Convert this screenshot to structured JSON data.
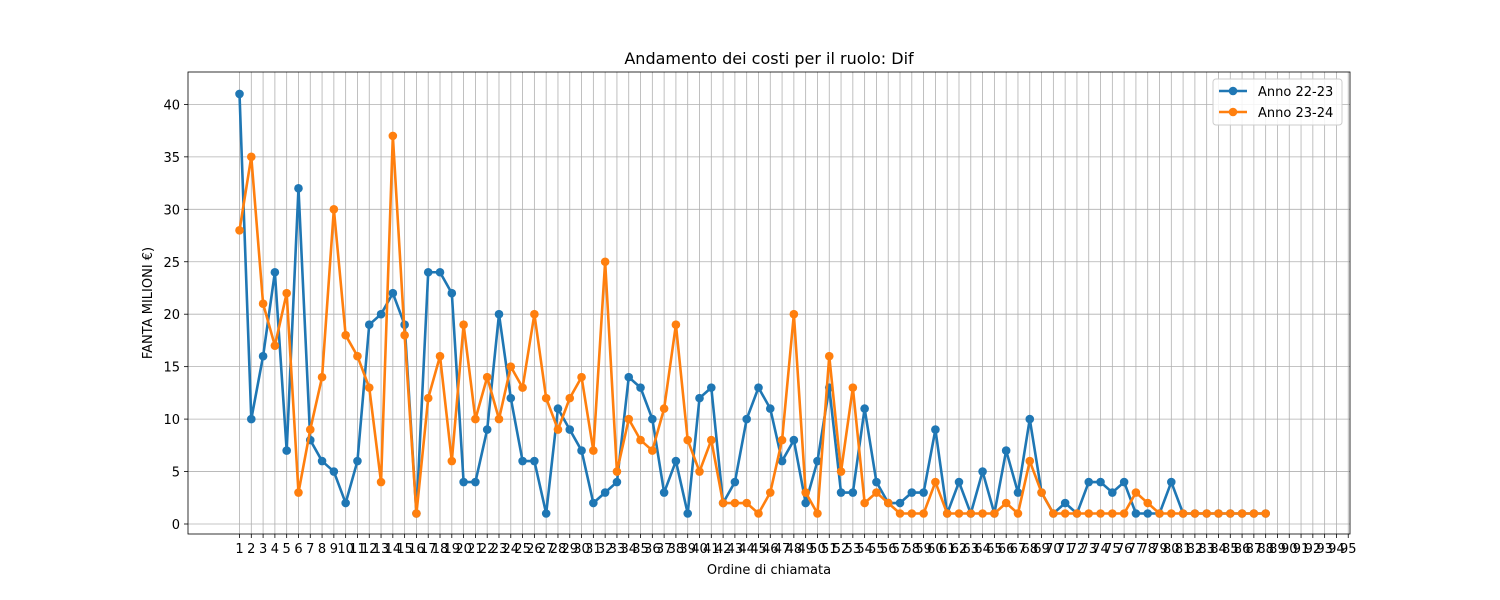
{
  "chart_data": {
    "type": "line",
    "title": "Andamento dei costi per il ruolo: Dif",
    "xlabel": "Ordine di chiamata",
    "ylabel": "FANTA MILIONI €)",
    "xlim": [
      1,
      95
    ],
    "ylim": [
      0,
      42
    ],
    "x_ticks": [
      1,
      2,
      3,
      4,
      5,
      6,
      7,
      8,
      9,
      10,
      11,
      12,
      13,
      14,
      15,
      16,
      17,
      18,
      19,
      20,
      21,
      22,
      23,
      24,
      25,
      26,
      27,
      28,
      29,
      30,
      31,
      32,
      33,
      34,
      35,
      36,
      37,
      38,
      39,
      40,
      41,
      42,
      43,
      44,
      45,
      46,
      47,
      48,
      49,
      50,
      51,
      52,
      53,
      54,
      55,
      56,
      57,
      58,
      59,
      60,
      61,
      62,
      63,
      64,
      65,
      66,
      67,
      68,
      69,
      70,
      71,
      72,
      73,
      74,
      75,
      76,
      77,
      78,
      79,
      80,
      81,
      82,
      83,
      84,
      85,
      86,
      87,
      88,
      89,
      90,
      91,
      92,
      93,
      94,
      95
    ],
    "y_ticks": [
      0,
      5,
      10,
      15,
      20,
      25,
      30,
      35,
      40
    ],
    "grid": true,
    "legend_position": "top-right",
    "series": [
      {
        "name": "Anno 22-23",
        "color": "#1f77b4",
        "values": [
          41,
          10,
          16,
          24,
          7,
          32,
          8,
          6,
          5,
          2,
          6,
          19,
          20,
          22,
          19,
          1,
          24,
          24,
          22,
          4,
          4,
          9,
          20,
          12,
          6,
          6,
          1,
          11,
          9,
          7,
          2,
          3,
          4,
          14,
          13,
          10,
          3,
          6,
          1,
          12,
          13,
          2,
          4,
          10,
          13,
          11,
          6,
          8,
          2,
          6,
          13,
          3,
          3,
          11,
          4,
          2,
          2,
          3,
          3,
          9,
          1,
          4,
          1,
          5,
          1,
          7,
          3,
          10,
          3,
          1,
          2,
          1,
          4,
          4,
          3,
          4,
          1,
          1,
          1,
          4,
          1,
          1,
          1,
          1,
          1,
          1,
          1,
          1
        ]
      },
      {
        "name": "Anno 23-24",
        "color": "#ff7f0e",
        "values": [
          28,
          35,
          21,
          17,
          22,
          3,
          9,
          14,
          30,
          18,
          16,
          13,
          4,
          37,
          18,
          1,
          12,
          16,
          6,
          19,
          10,
          14,
          10,
          15,
          13,
          20,
          12,
          9,
          12,
          14,
          7,
          25,
          5,
          10,
          8,
          7,
          11,
          19,
          8,
          5,
          8,
          2,
          2,
          2,
          1,
          3,
          8,
          20,
          3,
          1,
          16,
          5,
          13,
          2,
          3,
          2,
          1,
          1,
          1,
          4,
          1,
          1,
          1,
          1,
          1,
          2,
          1,
          6,
          3,
          1,
          1,
          1,
          1,
          1,
          1,
          1,
          3,
          2,
          1,
          1,
          1,
          1,
          1,
          1,
          1,
          1,
          1,
          1
        ]
      }
    ]
  }
}
